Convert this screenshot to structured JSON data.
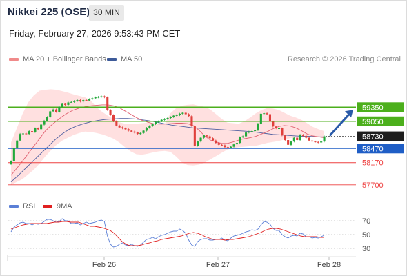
{
  "header": {
    "title": "Nikkei 225 (OSE)",
    "timeframe": "30 MIN",
    "timestamp": "Friday, February 27, 2026 9:53:43 PM CET"
  },
  "legend": {
    "ma20_label": "MA 20 + Bollinger Bands",
    "ma50_label": "MA 50",
    "credit": "Research © 2026 Trading Central"
  },
  "rsi_legend": {
    "rsi_label": "RSI",
    "ma_label": "9MA"
  },
  "colors": {
    "green_level": "#4caf1c",
    "blue_level": "#1f5ec6",
    "red_level": "#ee4040",
    "band_fill": "#ffd6d6",
    "candle_up": "#22a93a",
    "candle_down": "#e0403c",
    "ma20": "#e06070",
    "ma50": "#4f5fa0",
    "rsi": "#5b7fd6",
    "rsi_ma": "#e02020",
    "arrow": "#2a5aa8",
    "current_price_bg": "#1e1e1e"
  },
  "chart_data": [
    {
      "type": "candlestick",
      "ylim": [
        57550,
        59780
      ],
      "x_ticks": [
        "Feb 26",
        "Feb 27",
        "Feb 28"
      ],
      "levels": [
        {
          "label": "59350",
          "value": 59350,
          "kind": "resistance"
        },
        {
          "label": "59050",
          "value": 59050,
          "kind": "resistance"
        },
        {
          "label": "58730",
          "value": 58730,
          "kind": "current"
        },
        {
          "label": "58470",
          "value": 58470,
          "kind": "pivot"
        },
        {
          "label": "58170",
          "value": 58170,
          "kind": "support"
        },
        {
          "label": "57700",
          "value": 57700,
          "kind": "support"
        }
      ],
      "closes": [
        58200,
        58480,
        58640,
        58780,
        58790,
        58780,
        58840,
        58820,
        58900,
        58880,
        58980,
        59060,
        59140,
        59260,
        59300,
        59250,
        59360,
        59420,
        59400,
        59450,
        59460,
        59480,
        59500,
        59470,
        59500,
        59490,
        59520,
        59540,
        59560,
        59570,
        59580,
        59560,
        59290,
        59180,
        59050,
        58960,
        58920,
        58900,
        58880,
        58850,
        58830,
        58810,
        58780,
        58800,
        58850,
        58910,
        58950,
        58990,
        59030,
        59050,
        59080,
        59100,
        59120,
        59140,
        59170,
        59180,
        59210,
        59230,
        59200,
        59160,
        58950,
        58530,
        58620,
        58700,
        58750,
        58730,
        58690,
        58640,
        58590,
        58550,
        58540,
        58500,
        58490,
        58510,
        58560,
        58590,
        58710,
        58730,
        58810,
        58830,
        58840,
        58860,
        59000,
        59210,
        59220,
        59200,
        59040,
        58940,
        58900,
        58900,
        58750,
        58650,
        58550,
        58620,
        58700,
        58650,
        58760,
        58740,
        58700,
        58640,
        58620,
        58610,
        58600,
        58620,
        58730
      ],
      "ma20": [
        57900,
        58050,
        58200,
        58360,
        58520,
        58680,
        58840,
        58960,
        59060,
        59150,
        59230,
        59290,
        59330,
        59360,
        59380,
        59390,
        59400,
        59400,
        59380,
        59340,
        59270,
        59200,
        59130,
        59070,
        59030,
        59000,
        58990,
        58990,
        59000,
        59010,
        59010,
        59000,
        58960,
        58860,
        58740,
        58650,
        58610,
        58580,
        58580,
        58610,
        58650,
        58680,
        58700,
        58730,
        58780,
        58830,
        58890,
        58940,
        58960,
        58950,
        58910,
        58850,
        58780,
        58740,
        58720,
        58700
      ],
      "ma50": [
        57760,
        57900,
        58050,
        58200,
        58350,
        58500,
        58650,
        58780,
        58880,
        58950,
        59000,
        59040,
        59070,
        59090,
        59100,
        59110,
        59110,
        59100,
        59080,
        59060,
        59030,
        59000,
        58970,
        58950,
        58930,
        58910,
        58900,
        58890,
        58880,
        58870,
        58860,
        58850,
        58840,
        58830,
        58810,
        58790,
        58770,
        58760,
        58750,
        58740,
        58730,
        58730,
        58720,
        58720
      ],
      "band_upper": [
        58600,
        58900,
        59200,
        59450,
        59600,
        59700,
        59720,
        59730,
        59720,
        59690,
        59660,
        59620,
        59590,
        59560,
        59490,
        59350,
        59250,
        59170,
        59100,
        59030,
        59000,
        58990,
        59000,
        59010,
        59020,
        59010,
        58980,
        59000,
        59220,
        59330,
        59380,
        59400,
        59410,
        59380,
        59360,
        59300,
        59200,
        59100,
        59020,
        59010,
        59000,
        59050,
        59130,
        59220,
        59290,
        59330,
        59320,
        59290,
        59230,
        59170,
        59130,
        59080,
        59010,
        58930,
        58880,
        58840
      ],
      "band_lower": [
        57700,
        57760,
        57820,
        57920,
        58020,
        58150,
        58300,
        58430,
        58550,
        58640,
        58700,
        58760,
        58800,
        58830,
        58820,
        58800,
        58770,
        58730,
        58680,
        58600,
        58500,
        58410,
        58350,
        58340,
        58360,
        58390,
        58410,
        58420,
        58400,
        58300,
        58180,
        58120,
        58110,
        58130,
        58170,
        58240,
        58310,
        58380,
        58450,
        58480,
        58500,
        58510,
        58520,
        58530,
        58560,
        58590,
        58610,
        58630,
        58660,
        58690,
        58700,
        58710,
        58720,
        58720,
        58720,
        58720
      ],
      "forecast_target": 59350
    },
    {
      "type": "line",
      "title": "RSI",
      "ylim": [
        22,
        80
      ],
      "y_ticks": [
        70,
        50,
        30
      ],
      "rsi": [
        54,
        61,
        64,
        67,
        68,
        66,
        66,
        64,
        66,
        65,
        66,
        69,
        72,
        72,
        70,
        68,
        69,
        73,
        70,
        70,
        66,
        66,
        67,
        64,
        66,
        68,
        66,
        67,
        68,
        70,
        71,
        69,
        48,
        36,
        32,
        33,
        36,
        38,
        35,
        34,
        36,
        34,
        33,
        35,
        39,
        43,
        44,
        46,
        44,
        47,
        49,
        50,
        52,
        54,
        55,
        55,
        58,
        56,
        52,
        42,
        35,
        33,
        40,
        43,
        44,
        44,
        42,
        42,
        43,
        43,
        45,
        42,
        41,
        45,
        48,
        49,
        50,
        52,
        54,
        55,
        57,
        56,
        58,
        64,
        69,
        68,
        65,
        59,
        56,
        56,
        50,
        47,
        45,
        48,
        49,
        48,
        52,
        51,
        47,
        47,
        45,
        46,
        45,
        47,
        49
      ],
      "rsi_ma": [
        58,
        60,
        62,
        64,
        65,
        66,
        66,
        66,
        66,
        66,
        67,
        68,
        68,
        69,
        69,
        68,
        68,
        68,
        66,
        64,
        62,
        62,
        61,
        60,
        58,
        56,
        52,
        46,
        40,
        36,
        34,
        34,
        34,
        35,
        37,
        38,
        40,
        41,
        43,
        44,
        45,
        46,
        47,
        48,
        50,
        52,
        53,
        52,
        50,
        47,
        45,
        43,
        43,
        43,
        42,
        43,
        43,
        44,
        45,
        46,
        47,
        49,
        51,
        53,
        56,
        58,
        59,
        59,
        58,
        56,
        54,
        52,
        50,
        48,
        47,
        47,
        47,
        47,
        46,
        46
      ]
    }
  ]
}
